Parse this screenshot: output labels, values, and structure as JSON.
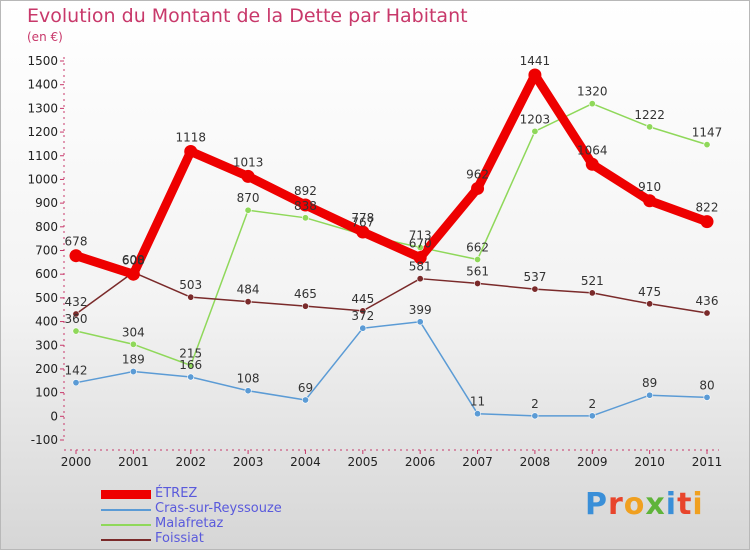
{
  "chart_data": {
    "type": "line",
    "title": "Evolution du Montant de la Dette par Habitant",
    "subtitle": "(en €)",
    "xlabel": "",
    "ylabel": "",
    "categories": [
      "2000",
      "2001",
      "2002",
      "2003",
      "2004",
      "2005",
      "2006",
      "2007",
      "2008",
      "2009",
      "2010",
      "2011"
    ],
    "ylim": [
      -100,
      1500
    ],
    "yticks": [
      -100,
      0,
      100,
      200,
      300,
      400,
      500,
      600,
      700,
      800,
      900,
      1000,
      1100,
      1200,
      1300,
      1400,
      1500
    ],
    "grid": false,
    "legend_position": "bottom-left",
    "series": [
      {
        "name": "ÉTREZ",
        "color": "#ee0000",
        "emphasis": "thick",
        "values": [
          678,
          600,
          1118,
          1013,
          892,
          778,
          670,
          962,
          1441,
          1064,
          910,
          822
        ],
        "labels": [
          "678",
          "600",
          "1118",
          "1013",
          "892",
          "778",
          "670",
          "962",
          "1441",
          "1064",
          "910",
          "822"
        ]
      },
      {
        "name": "Cras-sur-Reyssouze",
        "color": "#5b9bd5",
        "emphasis": "thin",
        "values": [
          142,
          189,
          166,
          108,
          69,
          372,
          399,
          11,
          2,
          2,
          89,
          80
        ],
        "labels": [
          "142",
          "189",
          "166",
          "108",
          "69",
          "372",
          "399",
          "11",
          "2",
          "2",
          "89",
          "80"
        ]
      },
      {
        "name": "Malafretaz",
        "color": "#8fd85a",
        "emphasis": "thin",
        "values": [
          360,
          304,
          215,
          870,
          838,
          767,
          713,
          662,
          1203,
          1320,
          1222,
          1147
        ],
        "labels": [
          "360",
          "304",
          "215",
          "870",
          "838",
          "767",
          "713",
          "662",
          "1203",
          "1320",
          "1222",
          "1147"
        ]
      },
      {
        "name": "Foissiat",
        "color": "#7a2a2a",
        "emphasis": "thin",
        "values": [
          432,
          608,
          503,
          484,
          465,
          445,
          581,
          561,
          537,
          521,
          475,
          436
        ],
        "labels": [
          "432",
          "608",
          "503",
          "484",
          "465",
          "445",
          "581",
          "561",
          "537",
          "521",
          "475",
          "436"
        ]
      }
    ]
  },
  "logo": {
    "letters": [
      "P",
      "r",
      "o",
      "x",
      "i",
      "t",
      "i"
    ],
    "colors": [
      "#3a8fd8",
      "#e8452c",
      "#f0a020",
      "#5fb43a",
      "#3a8fd8",
      "#e8452c",
      "#f0a020"
    ]
  }
}
